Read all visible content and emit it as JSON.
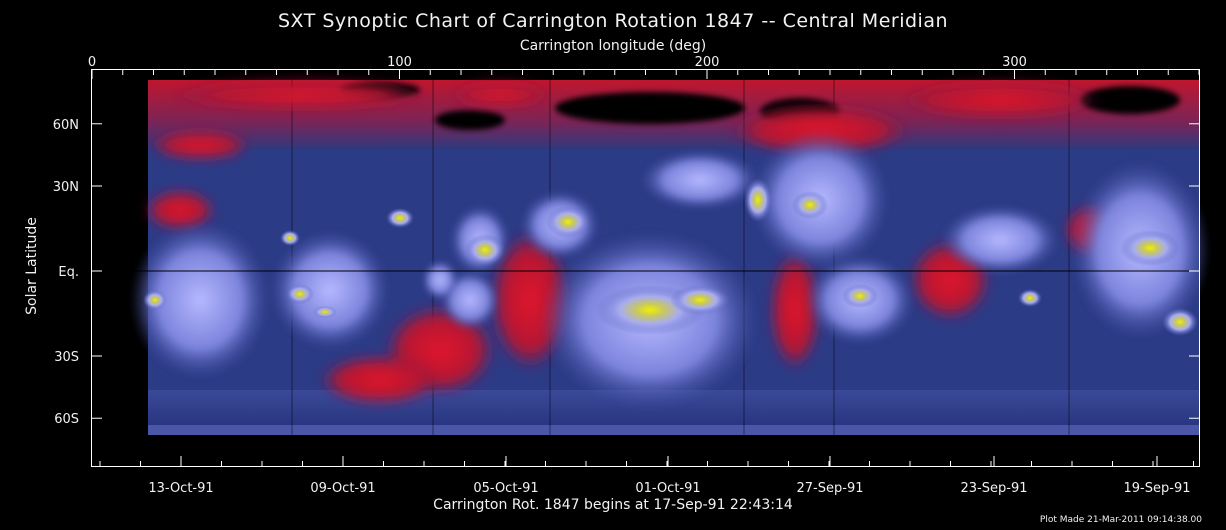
{
  "title": "SXT Synoptic Chart of Carrington Rotation 1847 -- Central Meridian",
  "top_axis_label": "Carrington longitude (deg)",
  "y_axis_label": "Solar Latitude",
  "bottom_label": "Carrington Rot. 1847 begins at 17-Sep-91 22:43:14",
  "plot_made": "Plot Made 21-Mar-2011 09:14:38.00",
  "top_ticks": [
    "0",
    "100",
    "200",
    "300"
  ],
  "lat_ticks": [
    "60N",
    "30N",
    "Eq.",
    "30S",
    "60S"
  ],
  "date_ticks": [
    "13-Oct-91",
    "09-Oct-91",
    "05-Oct-91",
    "01-Oct-91",
    "27-Sep-91",
    "23-Sep-91",
    "19-Sep-91"
  ],
  "colors": {
    "background": "#000000",
    "quiet": "#2b3a7a",
    "coronal_hole": "#d0152a",
    "active": "#aab0ff",
    "bright": "#e6e800"
  }
}
